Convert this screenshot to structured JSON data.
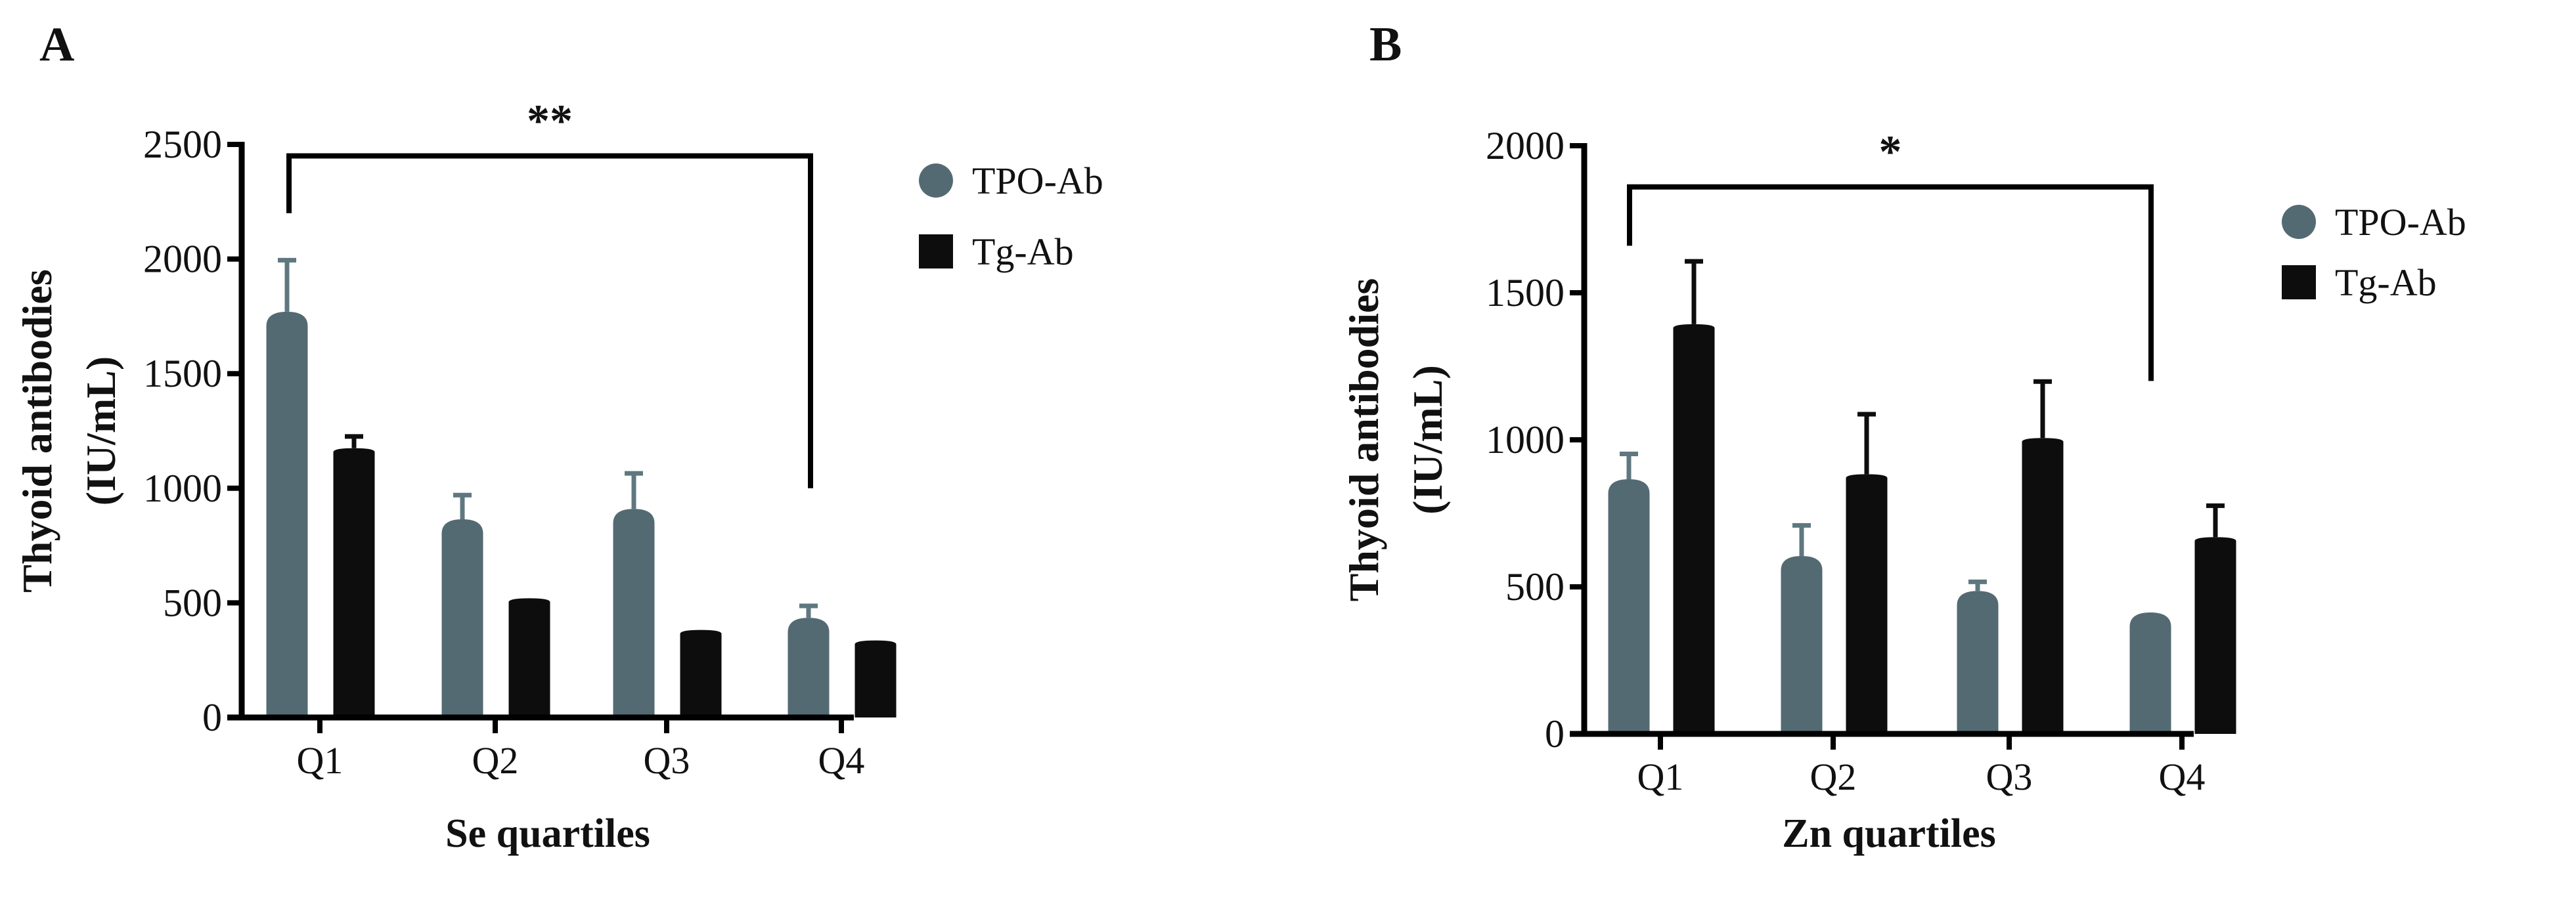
{
  "colors": {
    "TPO-Ab": "#546a73",
    "Tg-Ab": "#0d0d0d"
  },
  "chart_data": [
    {
      "type": "bar",
      "panel_label": "A",
      "title": "",
      "xlabel": "Se quartiles",
      "ylabel": "Thyoid antibodies (IU/mL)",
      "ylabel_lines": [
        "Thyoid antibodies",
        "(IU/mL)"
      ],
      "ylim": [
        0,
        2500
      ],
      "yticks": [
        0,
        500,
        1000,
        1500,
        2000,
        2500
      ],
      "categories": [
        "Q1",
        "Q2",
        "Q3",
        "Q4"
      ],
      "legend_position": "right",
      "series": [
        {
          "name": "TPO-Ab",
          "values": [
            1770,
            865,
            910,
            435
          ],
          "error_upper": [
            1995,
            970,
            1065,
            487
          ]
        },
        {
          "name": "Tg-Ab",
          "values": [
            1175,
            520,
            382,
            336
          ],
          "error_upper": [
            1226,
            520,
            382,
            336
          ]
        }
      ],
      "significance": {
        "label": "**",
        "from": "Q1",
        "to": "Q4",
        "level": 2450,
        "left_end": 2200,
        "right_end": 1000
      }
    },
    {
      "type": "bar",
      "panel_label": "B",
      "title": "",
      "xlabel": "Zn quartiles",
      "ylabel": "Thyoid antibodies (IU/mL)",
      "ylabel_lines": [
        "Thyoid antibodies",
        "(IU/mL)"
      ],
      "ylim": [
        0,
        2000
      ],
      "yticks": [
        0,
        500,
        1000,
        1500,
        2000
      ],
      "categories": [
        "Q1",
        "Q2",
        "Q3",
        "Q4"
      ],
      "legend_position": "right",
      "series": [
        {
          "name": "TPO-Ab",
          "values": [
            866,
            605,
            486,
            413
          ],
          "error_upper": [
            952,
            709,
            517,
            413
          ]
        },
        {
          "name": "Tg-Ab",
          "values": [
            1393,
            883,
            1006,
            669
          ],
          "error_upper": [
            1607,
            1087,
            1198,
            776
          ]
        }
      ],
      "significance": {
        "label": "*",
        "from": "Q1",
        "to": "Q4",
        "level": 1860,
        "left_end": 1660,
        "right_end": 1200
      }
    }
  ]
}
